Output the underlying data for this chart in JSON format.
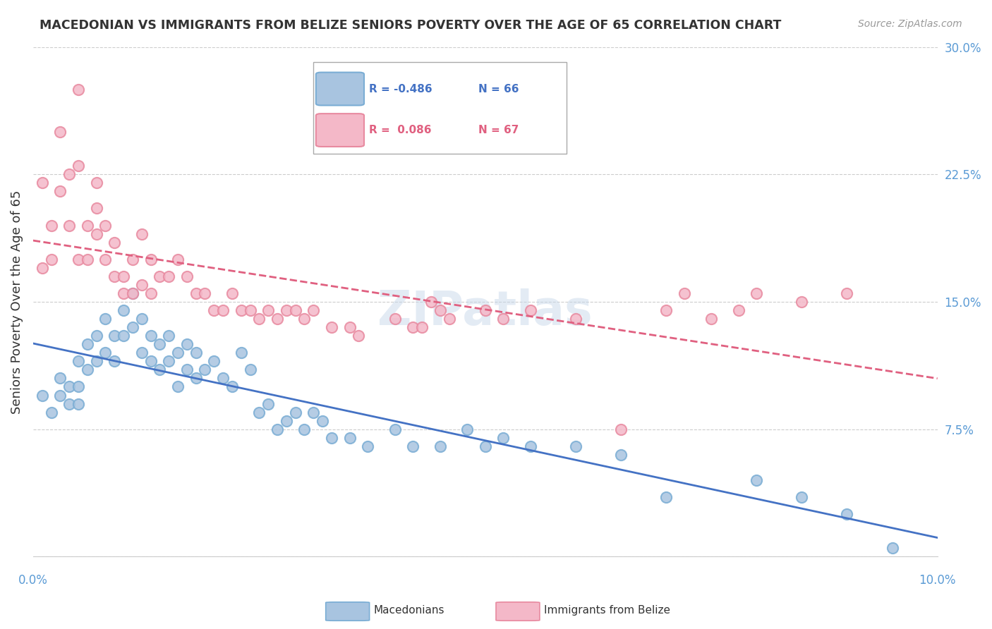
{
  "title": "MACEDONIAN VS IMMIGRANTS FROM BELIZE SENIORS POVERTY OVER THE AGE OF 65 CORRELATION CHART",
  "source": "Source: ZipAtlas.com",
  "ylabel": "Seniors Poverty Over the Age of 65",
  "ytick_labels": [
    "",
    "7.5%",
    "15.0%",
    "22.5%",
    "30.0%"
  ],
  "ytick_values": [
    0,
    0.075,
    0.15,
    0.225,
    0.3
  ],
  "xlim": [
    0.0,
    0.1
  ],
  "ylim": [
    0.0,
    0.3
  ],
  "legend_blue_R": "-0.486",
  "legend_blue_N": "66",
  "legend_pink_R": "0.086",
  "legend_pink_N": "67",
  "macedonian_color": "#a8c4e0",
  "macedonian_edge": "#7aadd4",
  "belize_color": "#f4b8c8",
  "belize_edge": "#e88aa0",
  "blue_line_color": "#4472c4",
  "pink_line_color": "#e06080",
  "watermark": "ZIPatlas",
  "macedonian_x": [
    0.001,
    0.002,
    0.003,
    0.003,
    0.004,
    0.004,
    0.005,
    0.005,
    0.005,
    0.006,
    0.006,
    0.007,
    0.007,
    0.008,
    0.008,
    0.009,
    0.009,
    0.01,
    0.01,
    0.011,
    0.011,
    0.012,
    0.012,
    0.013,
    0.013,
    0.014,
    0.014,
    0.015,
    0.015,
    0.016,
    0.016,
    0.017,
    0.017,
    0.018,
    0.018,
    0.019,
    0.02,
    0.021,
    0.022,
    0.023,
    0.024,
    0.025,
    0.026,
    0.027,
    0.028,
    0.029,
    0.03,
    0.031,
    0.032,
    0.033,
    0.035,
    0.037,
    0.04,
    0.042,
    0.045,
    0.048,
    0.05,
    0.052,
    0.055,
    0.06,
    0.065,
    0.07,
    0.08,
    0.085,
    0.09,
    0.095
  ],
  "macedonian_y": [
    0.095,
    0.085,
    0.105,
    0.095,
    0.1,
    0.09,
    0.115,
    0.1,
    0.09,
    0.125,
    0.11,
    0.13,
    0.115,
    0.14,
    0.12,
    0.13,
    0.115,
    0.145,
    0.13,
    0.155,
    0.135,
    0.14,
    0.12,
    0.13,
    0.115,
    0.125,
    0.11,
    0.13,
    0.115,
    0.12,
    0.1,
    0.125,
    0.11,
    0.12,
    0.105,
    0.11,
    0.115,
    0.105,
    0.1,
    0.12,
    0.11,
    0.085,
    0.09,
    0.075,
    0.08,
    0.085,
    0.075,
    0.085,
    0.08,
    0.07,
    0.07,
    0.065,
    0.075,
    0.065,
    0.065,
    0.075,
    0.065,
    0.07,
    0.065,
    0.065,
    0.06,
    0.035,
    0.045,
    0.035,
    0.025,
    0.005
  ],
  "belize_x": [
    0.001,
    0.001,
    0.002,
    0.002,
    0.003,
    0.003,
    0.004,
    0.004,
    0.005,
    0.005,
    0.005,
    0.006,
    0.006,
    0.007,
    0.007,
    0.007,
    0.008,
    0.008,
    0.009,
    0.009,
    0.01,
    0.01,
    0.011,
    0.011,
    0.012,
    0.012,
    0.013,
    0.013,
    0.014,
    0.015,
    0.016,
    0.017,
    0.018,
    0.019,
    0.02,
    0.021,
    0.022,
    0.023,
    0.024,
    0.025,
    0.026,
    0.027,
    0.028,
    0.029,
    0.03,
    0.031,
    0.033,
    0.035,
    0.036,
    0.04,
    0.042,
    0.043,
    0.044,
    0.045,
    0.046,
    0.05,
    0.052,
    0.055,
    0.06,
    0.065,
    0.07,
    0.072,
    0.075,
    0.078,
    0.08,
    0.085,
    0.09
  ],
  "belize_y": [
    0.17,
    0.22,
    0.195,
    0.175,
    0.25,
    0.215,
    0.225,
    0.195,
    0.275,
    0.23,
    0.175,
    0.195,
    0.175,
    0.22,
    0.205,
    0.19,
    0.195,
    0.175,
    0.185,
    0.165,
    0.165,
    0.155,
    0.175,
    0.155,
    0.19,
    0.16,
    0.175,
    0.155,
    0.165,
    0.165,
    0.175,
    0.165,
    0.155,
    0.155,
    0.145,
    0.145,
    0.155,
    0.145,
    0.145,
    0.14,
    0.145,
    0.14,
    0.145,
    0.145,
    0.14,
    0.145,
    0.135,
    0.135,
    0.13,
    0.14,
    0.135,
    0.135,
    0.15,
    0.145,
    0.14,
    0.145,
    0.14,
    0.145,
    0.14,
    0.075,
    0.145,
    0.155,
    0.14,
    0.145,
    0.155,
    0.15,
    0.155
  ]
}
